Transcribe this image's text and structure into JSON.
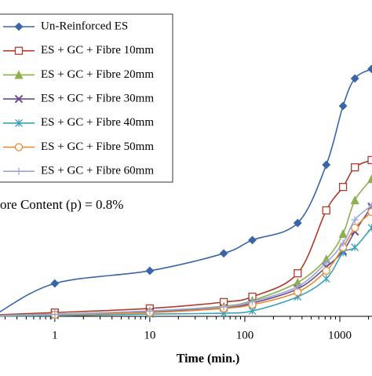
{
  "chart_data": {
    "type": "line",
    "xlabel": "Time (min.)",
    "annotation": "ore Content (p) = 0.8%",
    "log_x": true,
    "xlim": [
      0.265,
      2180
    ],
    "ylim": [
      0,
      100
    ],
    "xticks": [
      1,
      10,
      100,
      1000
    ],
    "x": [
      0.25,
      1,
      10,
      60,
      120,
      360,
      720,
      1080,
      1440,
      2160
    ],
    "series": [
      {
        "name": "Un-Reinforced ES",
        "color": "#3a66a8",
        "marker": "diamond",
        "values": [
          1,
          10.4,
          14.4,
          19.9,
          24.1,
          29.5,
          47.9,
          66.5,
          75.2,
          78.2
        ]
      },
      {
        "name": "ES + GC + Fibre 10mm",
        "color": "#b03a2e",
        "marker": "square",
        "values": [
          0.5,
          1.2,
          2.5,
          4.5,
          6.2,
          13.6,
          33.5,
          40.9,
          47.1,
          49.4
        ]
      },
      {
        "name": "ES + GC + Fibre 20mm",
        "color": "#8db04a",
        "marker": "triangle",
        "values": [
          0.3,
          0.7,
          1.7,
          3.2,
          5.0,
          10.7,
          18.1,
          26.1,
          36.7,
          43.4
        ]
      },
      {
        "name": "ES + GC + Fibre 30mm",
        "color": "#6a4a8e",
        "marker": "cross",
        "values": [
          0.2,
          0.5,
          1.5,
          2.7,
          4.2,
          8.7,
          15.6,
          20.6,
          26.8,
          34.7
        ]
      },
      {
        "name": "ES + GC + Fibre 40mm",
        "color": "#3aa0b8",
        "marker": "star",
        "values": [
          0.1,
          0.2,
          0.7,
          1.0,
          1.7,
          6.2,
          11.9,
          20.1,
          21.8,
          28.0
        ]
      },
      {
        "name": "ES + GC + Fibre 50mm",
        "color": "#e88a32",
        "marker": "circle",
        "values": [
          0.2,
          0.5,
          1.2,
          2.5,
          3.7,
          7.7,
          14.4,
          21.8,
          28.0,
          33.0
        ]
      },
      {
        "name": "ES + GC + Fibre 60mm",
        "color": "#9aa6d8",
        "marker": "plus",
        "values": [
          0.2,
          0.6,
          1.7,
          3.0,
          4.7,
          9.4,
          17.0,
          23.1,
          30.5,
          35.0
        ]
      }
    ]
  }
}
